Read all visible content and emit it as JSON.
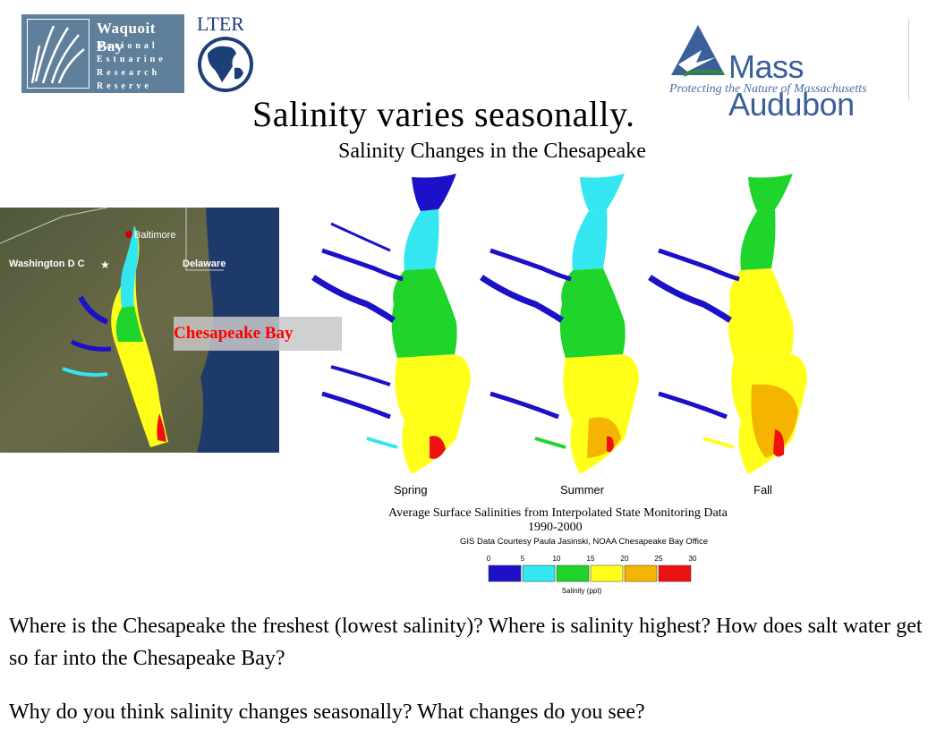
{
  "logos": {
    "waquoit": {
      "title": "Waquoit Bay",
      "lines": [
        "National",
        "Estuarine",
        "Research",
        "Reserve"
      ]
    },
    "lter": {
      "text": "LTER"
    },
    "mass_audubon": {
      "name": "Mass Audubon",
      "tagline": "Protecting the Nature of Massachusetts"
    }
  },
  "title": "Salinity varies seasonally.",
  "subtitle": "Salinity Changes in the Chesapeake",
  "satellite_map": {
    "labels": {
      "city1": "Baltimore",
      "city2": "Washington D C",
      "state": "Delaware"
    },
    "callout": "Chesapeake Bay"
  },
  "figure": {
    "seasons": [
      "Spring",
      "Summer",
      "Fall"
    ],
    "caption_line1": "Average Surface Salinities from Interpolated State Monitoring Data",
    "caption_line2": "1990-2000",
    "credit": "GIS Data Courtesy Paula Jasinski, NOAA Chesapeake Bay Office",
    "legend": {
      "ticks": [
        "0",
        "5",
        "10",
        "15",
        "20",
        "25",
        "30"
      ],
      "colors": [
        "#1c10c8",
        "#33e6f0",
        "#1fd42a",
        "#ffff1a",
        "#f5b400",
        "#ee1111"
      ],
      "label": "Salinity (ppt)"
    }
  },
  "questions": {
    "q1": "Where is the Chesapeake the freshest (lowest salinity)?  Where is salinity highest?  How does salt water get so far into the Chesapeake Bay?",
    "q2": "Why do you think salinity changes seasonally?  What changes do you see?"
  },
  "colors": {
    "fresh": "#1c10c8",
    "low": "#33e6f0",
    "mid": "#1fd42a",
    "high": "#ffff1a",
    "higher": "#f5b400",
    "highest": "#ee1111"
  }
}
